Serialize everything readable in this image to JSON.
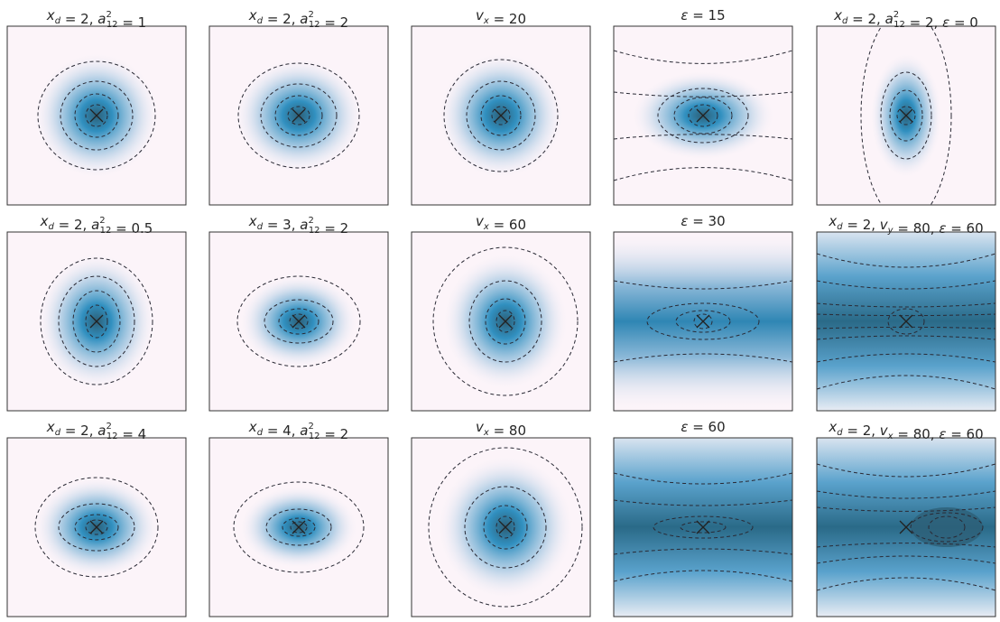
{
  "panels": [
    {
      "title": [
        {
          "v": "x",
          "sub": "d"
        },
        {
          "t": " = 2, "
        },
        {
          "v": "a",
          "sup": "2",
          "sub": "12"
        },
        {
          "t": " = 1"
        }
      ]
    },
    {
      "title": [
        {
          "v": "x",
          "sub": "d"
        },
        {
          "t": " = 2, "
        },
        {
          "v": "a",
          "sup": "2",
          "sub": "12"
        },
        {
          "t": " = 2"
        }
      ]
    },
    {
      "title": [
        {
          "v": "v",
          "sub": "x"
        },
        {
          "t": " = 20"
        }
      ]
    },
    {
      "title": [
        {
          "v": "ε"
        },
        {
          "t": " = 15"
        }
      ]
    },
    {
      "title": [
        {
          "v": "x",
          "sub": "d"
        },
        {
          "t": " = 2, "
        },
        {
          "v": "a",
          "sup": "2",
          "sub": "12"
        },
        {
          "t": " = 2, "
        },
        {
          "v": "ε"
        },
        {
          "t": " = 0"
        }
      ]
    },
    {
      "title": [
        {
          "v": "x",
          "sub": "d"
        },
        {
          "t": " = 2, "
        },
        {
          "v": "a",
          "sup": "2",
          "sub": "12"
        },
        {
          "t": " = 0.5"
        }
      ]
    },
    {
      "title": [
        {
          "v": "x",
          "sub": "d"
        },
        {
          "t": " = 3, "
        },
        {
          "v": "a",
          "sup": "2",
          "sub": "12"
        },
        {
          "t": " = 2"
        }
      ]
    },
    {
      "title": [
        {
          "v": "v",
          "sub": "x"
        },
        {
          "t": " = 60"
        }
      ]
    },
    {
      "title": [
        {
          "v": "ε"
        },
        {
          "t": " = 30"
        }
      ]
    },
    {
      "title": [
        {
          "v": "x",
          "sub": "d"
        },
        {
          "t": " = 2, "
        },
        {
          "v": "v",
          "sub": "y"
        },
        {
          "t": " = 80, "
        },
        {
          "v": "ε"
        },
        {
          "t": " = 60"
        }
      ]
    },
    {
      "title": [
        {
          "v": "x",
          "sub": "d"
        },
        {
          "t": " = 2, "
        },
        {
          "v": "a",
          "sup": "2",
          "sub": "12"
        },
        {
          "t": " = 4"
        }
      ]
    },
    {
      "title": [
        {
          "v": "x",
          "sub": "d"
        },
        {
          "t": " = 4, "
        },
        {
          "v": "a",
          "sup": "2",
          "sub": "12"
        },
        {
          "t": " = 2"
        }
      ]
    },
    {
      "title": [
        {
          "v": "v",
          "sub": "x"
        },
        {
          "t": " = 80"
        }
      ]
    },
    {
      "title": [
        {
          "v": "ε"
        },
        {
          "t": " = 60"
        }
      ]
    },
    {
      "title": [
        {
          "v": "x",
          "sub": "d"
        },
        {
          "t": " = 2, "
        },
        {
          "v": "v",
          "sub": "x"
        },
        {
          "t": " = 80, "
        },
        {
          "v": "ε"
        },
        {
          "t": " = 60"
        }
      ]
    }
  ]
}
